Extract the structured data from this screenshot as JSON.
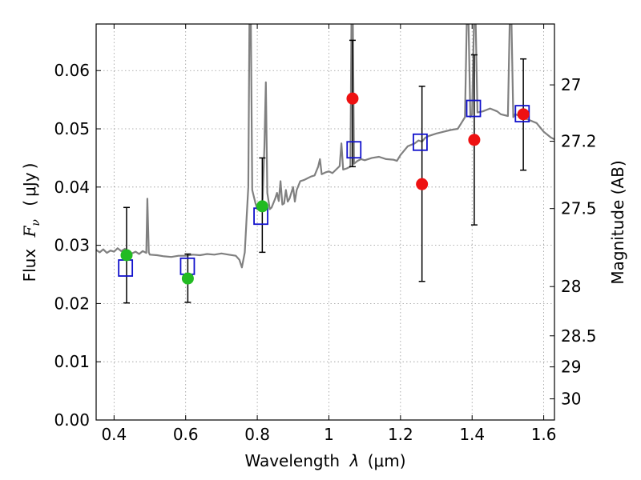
{
  "chart_data": {
    "type": "scatter",
    "xlabel_parts": {
      "prefix": "Wavelength",
      "var": "λ",
      "unit_open": "(",
      "unit": "μm",
      "unit_close": ")"
    },
    "ylabel_parts": {
      "prefix": "Flux",
      "var": "F",
      "sub": "ν",
      "unit_open": "(",
      "unit": "μJy",
      "unit_close": ")"
    },
    "y2label": "Magnitude (AB)",
    "xlim": [
      0.35,
      1.63
    ],
    "ylim": [
      0.0,
      0.068
    ],
    "grid": true,
    "x_ticks": [
      {
        "value": 0.4,
        "label": "0.4"
      },
      {
        "value": 0.6,
        "label": "0.6"
      },
      {
        "value": 0.8,
        "label": "0.8"
      },
      {
        "value": 1.0,
        "label": "1"
      },
      {
        "value": 1.2,
        "label": "1.2"
      },
      {
        "value": 1.4,
        "label": "1.4"
      },
      {
        "value": 1.6,
        "label": "1.6"
      }
    ],
    "y_ticks": [
      {
        "value": 0.0,
        "label": "0.00"
      },
      {
        "value": 0.01,
        "label": "0.01"
      },
      {
        "value": 0.02,
        "label": "0.02"
      },
      {
        "value": 0.03,
        "label": "0.03"
      },
      {
        "value": 0.04,
        "label": "0.04"
      },
      {
        "value": 0.05,
        "label": "0.05"
      },
      {
        "value": 0.06,
        "label": "0.06"
      }
    ],
    "y2_ticks": [
      {
        "value": 27,
        "label": "27"
      },
      {
        "value": 27.2,
        "label": "27.2"
      },
      {
        "value": 27.5,
        "label": "27.5"
      },
      {
        "value": 28,
        "label": "28"
      },
      {
        "value": 28.5,
        "label": "28.5"
      },
      {
        "value": 29,
        "label": "29"
      },
      {
        "value": 30,
        "label": "30"
      }
    ],
    "colors": {
      "model": "#808080",
      "green": "#22bb22",
      "red": "#ee1111",
      "square": "#1111cc",
      "errorbar": "#000000",
      "grid": "#999999"
    },
    "model_spectrum": [
      [
        0.35,
        0.0292
      ],
      [
        0.36,
        0.0288
      ],
      [
        0.37,
        0.0293
      ],
      [
        0.38,
        0.0287
      ],
      [
        0.39,
        0.0291
      ],
      [
        0.4,
        0.0289
      ],
      [
        0.41,
        0.0295
      ],
      [
        0.42,
        0.029
      ],
      [
        0.43,
        0.0294
      ],
      [
        0.44,
        0.0288
      ],
      [
        0.45,
        0.0286
      ],
      [
        0.46,
        0.0289
      ],
      [
        0.47,
        0.0285
      ],
      [
        0.48,
        0.029
      ],
      [
        0.49,
        0.0287
      ],
      [
        0.493,
        0.038
      ],
      [
        0.497,
        0.0288
      ],
      [
        0.5,
        0.0284
      ],
      [
        0.52,
        0.0283
      ],
      [
        0.54,
        0.0281
      ],
      [
        0.56,
        0.028
      ],
      [
        0.58,
        0.0282
      ],
      [
        0.6,
        0.0282
      ],
      [
        0.62,
        0.0284
      ],
      [
        0.64,
        0.0283
      ],
      [
        0.66,
        0.0285
      ],
      [
        0.68,
        0.0284
      ],
      [
        0.7,
        0.0286
      ],
      [
        0.72,
        0.0284
      ],
      [
        0.74,
        0.0282
      ],
      [
        0.75,
        0.0275
      ],
      [
        0.757,
        0.0262
      ],
      [
        0.765,
        0.0288
      ],
      [
        0.77,
        0.0345
      ],
      [
        0.775,
        0.04
      ],
      [
        0.778,
        0.068
      ],
      [
        0.782,
        0.068
      ],
      [
        0.786,
        0.0395
      ],
      [
        0.795,
        0.0372
      ],
      [
        0.8,
        0.0362
      ],
      [
        0.81,
        0.036
      ],
      [
        0.815,
        0.038
      ],
      [
        0.82,
        0.047
      ],
      [
        0.824,
        0.058
      ],
      [
        0.828,
        0.039
      ],
      [
        0.835,
        0.0362
      ],
      [
        0.84,
        0.0365
      ],
      [
        0.85,
        0.038
      ],
      [
        0.855,
        0.039
      ],
      [
        0.86,
        0.0376
      ],
      [
        0.865,
        0.041
      ],
      [
        0.87,
        0.037
      ],
      [
        0.875,
        0.0372
      ],
      [
        0.88,
        0.0395
      ],
      [
        0.885,
        0.0375
      ],
      [
        0.89,
        0.038
      ],
      [
        0.9,
        0.04
      ],
      [
        0.905,
        0.0375
      ],
      [
        0.91,
        0.0395
      ],
      [
        0.92,
        0.041
      ],
      [
        0.93,
        0.0412
      ],
      [
        0.94,
        0.0415
      ],
      [
        0.95,
        0.0418
      ],
      [
        0.96,
        0.042
      ],
      [
        0.97,
        0.0435
      ],
      [
        0.975,
        0.0448
      ],
      [
        0.98,
        0.0422
      ],
      [
        0.99,
        0.0425
      ],
      [
        1.0,
        0.0427
      ],
      [
        1.01,
        0.0424
      ],
      [
        1.02,
        0.043
      ],
      [
        1.03,
        0.0436
      ],
      [
        1.035,
        0.0475
      ],
      [
        1.04,
        0.043
      ],
      [
        1.05,
        0.0432
      ],
      [
        1.06,
        0.0435
      ],
      [
        1.063,
        0.068
      ],
      [
        1.067,
        0.068
      ],
      [
        1.07,
        0.044
      ],
      [
        1.08,
        0.0445
      ],
      [
        1.09,
        0.0448
      ],
      [
        1.1,
        0.0446
      ],
      [
        1.12,
        0.045
      ],
      [
        1.14,
        0.0452
      ],
      [
        1.16,
        0.0448
      ],
      [
        1.18,
        0.0447
      ],
      [
        1.19,
        0.0445
      ],
      [
        1.2,
        0.0455
      ],
      [
        1.22,
        0.047
      ],
      [
        1.24,
        0.0475
      ],
      [
        1.25,
        0.048
      ],
      [
        1.26,
        0.0478
      ],
      [
        1.27,
        0.0485
      ],
      [
        1.28,
        0.0488
      ],
      [
        1.3,
        0.0492
      ],
      [
        1.32,
        0.0495
      ],
      [
        1.34,
        0.0498
      ],
      [
        1.36,
        0.05
      ],
      [
        1.37,
        0.051
      ],
      [
        1.38,
        0.052
      ],
      [
        1.385,
        0.068
      ],
      [
        1.39,
        0.068
      ],
      [
        1.395,
        0.052
      ],
      [
        1.4,
        0.0525
      ],
      [
        1.405,
        0.068
      ],
      [
        1.41,
        0.068
      ],
      [
        1.415,
        0.0528
      ],
      [
        1.43,
        0.053
      ],
      [
        1.45,
        0.0535
      ],
      [
        1.47,
        0.053
      ],
      [
        1.48,
        0.0525
      ],
      [
        1.5,
        0.0522
      ],
      [
        1.505,
        0.068
      ],
      [
        1.51,
        0.068
      ],
      [
        1.515,
        0.052
      ],
      [
        1.52,
        0.0525
      ],
      [
        1.53,
        0.0523
      ],
      [
        1.54,
        0.052
      ],
      [
        1.56,
        0.0515
      ],
      [
        1.58,
        0.051
      ],
      [
        1.6,
        0.0495
      ],
      [
        1.62,
        0.0485
      ],
      [
        1.63,
        0.0482
      ]
    ],
    "measured_points": [
      {
        "x": 0.435,
        "y": 0.0283,
        "err_low": 0.0201,
        "err_high": 0.0365,
        "color": "green"
      },
      {
        "x": 0.606,
        "y": 0.0243,
        "err_low": 0.0202,
        "err_high": 0.0285,
        "color": "green"
      },
      {
        "x": 0.814,
        "y": 0.0367,
        "err_low": 0.0288,
        "err_high": 0.045,
        "color": "green"
      },
      {
        "x": 1.066,
        "y": 0.0552,
        "err_low": 0.0435,
        "err_high": 0.0652,
        "color": "red"
      },
      {
        "x": 1.26,
        "y": 0.0405,
        "err_low": 0.0238,
        "err_high": 0.0573,
        "color": "red"
      },
      {
        "x": 1.406,
        "y": 0.0481,
        "err_low": 0.0335,
        "err_high": 0.0627,
        "color": "red"
      },
      {
        "x": 1.543,
        "y": 0.0525,
        "err_low": 0.0429,
        "err_high": 0.062,
        "color": "red"
      }
    ],
    "model_photometry": [
      {
        "x": 0.432,
        "y": 0.0261
      },
      {
        "x": 0.605,
        "y": 0.0264
      },
      {
        "x": 0.81,
        "y": 0.035
      },
      {
        "x": 1.07,
        "y": 0.0464
      },
      {
        "x": 1.255,
        "y": 0.0477
      },
      {
        "x": 1.404,
        "y": 0.0535
      },
      {
        "x": 1.54,
        "y": 0.0526
      }
    ]
  }
}
